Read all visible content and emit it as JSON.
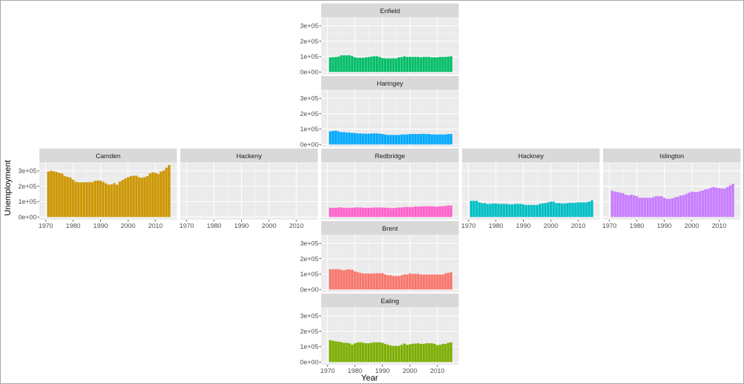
{
  "chart_data": {
    "type": "bar",
    "layout": "geofacet grid",
    "xlabel": "Year",
    "ylabel": "Unemployment",
    "x": [
      1971,
      1972,
      1973,
      1974,
      1975,
      1976,
      1977,
      1978,
      1979,
      1980,
      1981,
      1982,
      1983,
      1984,
      1985,
      1986,
      1987,
      1988,
      1989,
      1990,
      1991,
      1992,
      1993,
      1994,
      1995,
      1996,
      1997,
      1998,
      1999,
      2000,
      2001,
      2002,
      2003,
      2004,
      2005,
      2006,
      2007,
      2008,
      2009,
      2010,
      2011,
      2012,
      2013,
      2014,
      2015
    ],
    "x_ticks": [
      1970,
      1980,
      1990,
      2000,
      2010
    ],
    "y_ticks": [
      0,
      100000,
      200000,
      300000
    ],
    "y_tick_labels": [
      "0e+00",
      "1e+05",
      "2e+05",
      "3e+05"
    ],
    "ylim": [
      -16900,
      355000
    ],
    "xlim": [
      1967.7,
      2017.8
    ],
    "grid": true,
    "legend": "none",
    "panels": [
      {
        "name": "Enfield",
        "color": "#00BE67",
        "values": [
          95000,
          96000,
          97000,
          100000,
          108000,
          108000,
          108000,
          108000,
          103000,
          95000,
          92000,
          92000,
          92000,
          95000,
          97000,
          100000,
          102000,
          102000,
          98000,
          90000,
          88000,
          88000,
          88000,
          88000,
          88000,
          95000,
          97000,
          102000,
          98000,
          98000,
          98000,
          98000,
          98000,
          96000,
          98000,
          98000,
          98000,
          95000,
          95000,
          95000,
          98000,
          98000,
          98000,
          100000,
          102000
        ]
      },
      {
        "name": "Haringey",
        "color": "#00A9FF",
        "values": [
          85000,
          88000,
          90000,
          85000,
          80000,
          80000,
          78000,
          78000,
          75000,
          75000,
          72000,
          72000,
          70000,
          70000,
          70000,
          72000,
          72000,
          72000,
          70000,
          68000,
          65000,
          62000,
          62000,
          62000,
          62000,
          62000,
          65000,
          65000,
          65000,
          68000,
          68000,
          68000,
          68000,
          68000,
          70000,
          68000,
          68000,
          65000,
          65000,
          65000,
          65000,
          65000,
          65000,
          68000,
          68000
        ]
      },
      {
        "name": "Camden",
        "color": "#CD9600",
        "values": [
          295000,
          300000,
          297000,
          292000,
          286000,
          282000,
          265000,
          260000,
          255000,
          242000,
          228000,
          225000,
          225000,
          225000,
          226000,
          226000,
          226000,
          235000,
          236000,
          236000,
          228000,
          218000,
          210000,
          212000,
          220000,
          210000,
          230000,
          240000,
          250000,
          258000,
          265000,
          268000,
          268000,
          258000,
          255000,
          258000,
          265000,
          283000,
          290000,
          287000,
          280000,
          295000,
          302000,
          320000,
          337000
        ]
      },
      {
        "name": "Hackeny",
        "color": "#999999",
        "values": []
      },
      {
        "name": "Redbridge",
        "color": "#FF61CC",
        "values": [
          60000,
          60000,
          60000,
          62000,
          62000,
          60000,
          60000,
          58000,
          60000,
          62000,
          62000,
          62000,
          60000,
          60000,
          60000,
          60000,
          62000,
          62000,
          62000,
          62000,
          60000,
          60000,
          58000,
          58000,
          60000,
          62000,
          62000,
          65000,
          65000,
          65000,
          65000,
          68000,
          68000,
          68000,
          70000,
          70000,
          70000,
          70000,
          68000,
          68000,
          70000,
          70000,
          72000,
          75000,
          75000
        ]
      },
      {
        "name": "Hackney",
        "color": "#00BFC4",
        "values": [
          105000,
          105000,
          105000,
          95000,
          90000,
          90000,
          85000,
          85000,
          88000,
          88000,
          85000,
          85000,
          85000,
          85000,
          82000,
          82000,
          85000,
          85000,
          85000,
          82000,
          78000,
          78000,
          78000,
          78000,
          78000,
          85000,
          88000,
          90000,
          95000,
          100000,
          100000,
          90000,
          90000,
          88000,
          88000,
          90000,
          92000,
          92000,
          92000,
          95000,
          95000,
          95000,
          95000,
          100000,
          108000
        ]
      },
      {
        "name": "Islington",
        "color": "#C77CFF",
        "values": [
          170000,
          165000,
          162000,
          158000,
          155000,
          145000,
          140000,
          145000,
          140000,
          135000,
          125000,
          125000,
          125000,
          125000,
          125000,
          128000,
          135000,
          135000,
          135000,
          125000,
          118000,
          118000,
          122000,
          128000,
          132000,
          140000,
          142000,
          150000,
          158000,
          165000,
          162000,
          162000,
          168000,
          172000,
          180000,
          182000,
          190000,
          195000,
          190000,
          188000,
          185000,
          185000,
          195000,
          205000,
          215000
        ]
      },
      {
        "name": "Brent",
        "color": "#F8766D",
        "values": [
          132000,
          132000,
          132000,
          132000,
          128000,
          125000,
          130000,
          130000,
          128000,
          118000,
          113000,
          108000,
          104000,
          104000,
          104000,
          104000,
          104000,
          106000,
          106000,
          106000,
          98000,
          93000,
          93000,
          88000,
          88000,
          88000,
          93000,
          98000,
          98000,
          105000,
          102000,
          102000,
          102000,
          98000,
          98000,
          98000,
          98000,
          98000,
          98000,
          98000,
          98000,
          98000,
          105000,
          108000,
          112000
        ]
      },
      {
        "name": "Ealing",
        "color": "#7CAE00",
        "values": [
          142000,
          138000,
          135000,
          132000,
          130000,
          125000,
          125000,
          122000,
          113000,
          122000,
          128000,
          128000,
          125000,
          122000,
          122000,
          125000,
          128000,
          128000,
          128000,
          125000,
          118000,
          112000,
          108000,
          105000,
          105000,
          105000,
          112000,
          120000,
          112000,
          115000,
          118000,
          120000,
          122000,
          118000,
          118000,
          122000,
          122000,
          122000,
          118000,
          110000,
          112000,
          118000,
          118000,
          125000,
          128000
        ]
      }
    ]
  }
}
